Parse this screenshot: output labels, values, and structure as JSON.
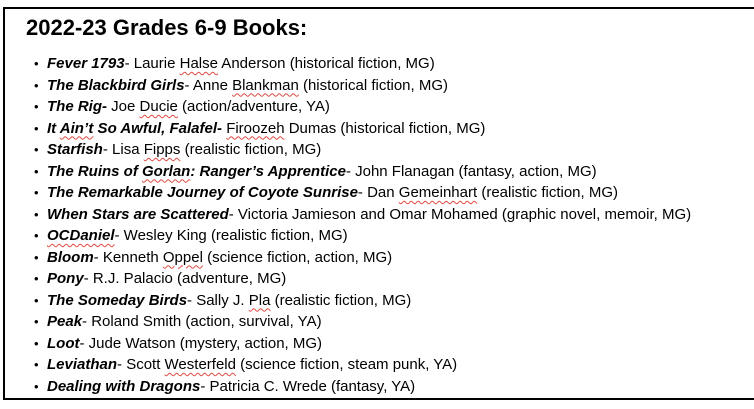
{
  "page": {
    "title": "2022-23 Grades 6-9 Books:"
  },
  "list": {
    "bullet_glyph": "•"
  },
  "colors": {
    "background": "#ffffff",
    "border": "#000000",
    "text": "#000000",
    "spellcheck_underline": "#dd4a43"
  },
  "books": [
    {
      "segments": [
        {
          "t": "Fever 1793",
          "s": "title"
        },
        {
          "t": "- Laurie ",
          "s": "plain"
        },
        {
          "t": "Halse",
          "s": "sp"
        },
        {
          "t": " Anderson (historical fiction, MG)",
          "s": "plain"
        }
      ]
    },
    {
      "segments": [
        {
          "t": "The Blackbird Girls",
          "s": "title"
        },
        {
          "t": "- Anne ",
          "s": "plain"
        },
        {
          "t": "Blankman",
          "s": "sp"
        },
        {
          "t": " (historical fiction, MG)",
          "s": "plain"
        }
      ]
    },
    {
      "segments": [
        {
          "t": "The Rig-",
          "s": "title"
        },
        {
          "t": " Joe ",
          "s": "plain"
        },
        {
          "t": "Ducie",
          "s": "sp"
        },
        {
          "t": " (action/adventure, YA)",
          "s": "plain"
        }
      ]
    },
    {
      "segments": [
        {
          "t": "It ",
          "s": "title"
        },
        {
          "t": "Ain’t",
          "s": "title-sp"
        },
        {
          "t": " So Awful, Falafel-",
          "s": "title"
        },
        {
          "t": " ",
          "s": "plain"
        },
        {
          "t": "Firoozeh",
          "s": "sp"
        },
        {
          "t": " Dumas (historical fiction, MG)",
          "s": "plain"
        }
      ]
    },
    {
      "segments": [
        {
          "t": "Starfish",
          "s": "title"
        },
        {
          "t": "- Lisa ",
          "s": "plain"
        },
        {
          "t": "Fipps",
          "s": "sp"
        },
        {
          "t": " (realistic fiction, MG)",
          "s": "plain"
        }
      ]
    },
    {
      "segments": [
        {
          "t": "The Ruins of ",
          "s": "title"
        },
        {
          "t": "Gorlan",
          "s": "title-sp"
        },
        {
          "t": ": Ranger’s Apprentice",
          "s": "title"
        },
        {
          "t": "- John Flanagan (fantasy, action, MG)",
          "s": "plain"
        }
      ]
    },
    {
      "segments": [
        {
          "t": "The Remarkable Journey of Coyote Sunrise",
          "s": "title"
        },
        {
          "t": "- Dan ",
          "s": "plain"
        },
        {
          "t": "Gemeinhart",
          "s": "sp"
        },
        {
          "t": " (realistic fiction, MG)",
          "s": "plain"
        }
      ]
    },
    {
      "segments": [
        {
          "t": "When Stars are Scattered",
          "s": "title"
        },
        {
          "t": "- Victoria Jamieson and Omar Mohamed (graphic novel, memoir, MG)",
          "s": "plain"
        }
      ]
    },
    {
      "segments": [
        {
          "t": "OCDaniel",
          "s": "title-sp"
        },
        {
          "t": "- Wesley King (realistic fiction, MG)",
          "s": "plain"
        }
      ]
    },
    {
      "segments": [
        {
          "t": "Bloom",
          "s": "title"
        },
        {
          "t": "- Kenneth ",
          "s": "plain"
        },
        {
          "t": "Oppel",
          "s": "sp"
        },
        {
          "t": " (science fiction, action, MG)",
          "s": "plain"
        }
      ]
    },
    {
      "segments": [
        {
          "t": "Pony",
          "s": "title"
        },
        {
          "t": "- R.J. Palacio (adventure, MG)",
          "s": "plain"
        }
      ]
    },
    {
      "segments": [
        {
          "t": "The Someday Birds",
          "s": "title"
        },
        {
          "t": "- Sally J. ",
          "s": "plain"
        },
        {
          "t": "Pla",
          "s": "sp"
        },
        {
          "t": " (realistic fiction, MG)",
          "s": "plain"
        }
      ]
    },
    {
      "segments": [
        {
          "t": "Peak",
          "s": "title"
        },
        {
          "t": "- Roland Smith (action, survival, YA)",
          "s": "plain"
        }
      ]
    },
    {
      "segments": [
        {
          "t": "Loot",
          "s": "title"
        },
        {
          "t": "- Jude Watson (mystery, action, MG)",
          "s": "plain"
        }
      ]
    },
    {
      "segments": [
        {
          "t": "Leviathan",
          "s": "title"
        },
        {
          "t": "- Scott ",
          "s": "plain"
        },
        {
          "t": "Westerfeld",
          "s": "sp"
        },
        {
          "t": " (science fiction, steam punk, YA)",
          "s": "plain"
        }
      ]
    },
    {
      "segments": [
        {
          "t": "Dealing with Dragons",
          "s": "title"
        },
        {
          "t": "- Patricia C. Wrede (fantasy, YA)",
          "s": "plain"
        }
      ]
    }
  ]
}
